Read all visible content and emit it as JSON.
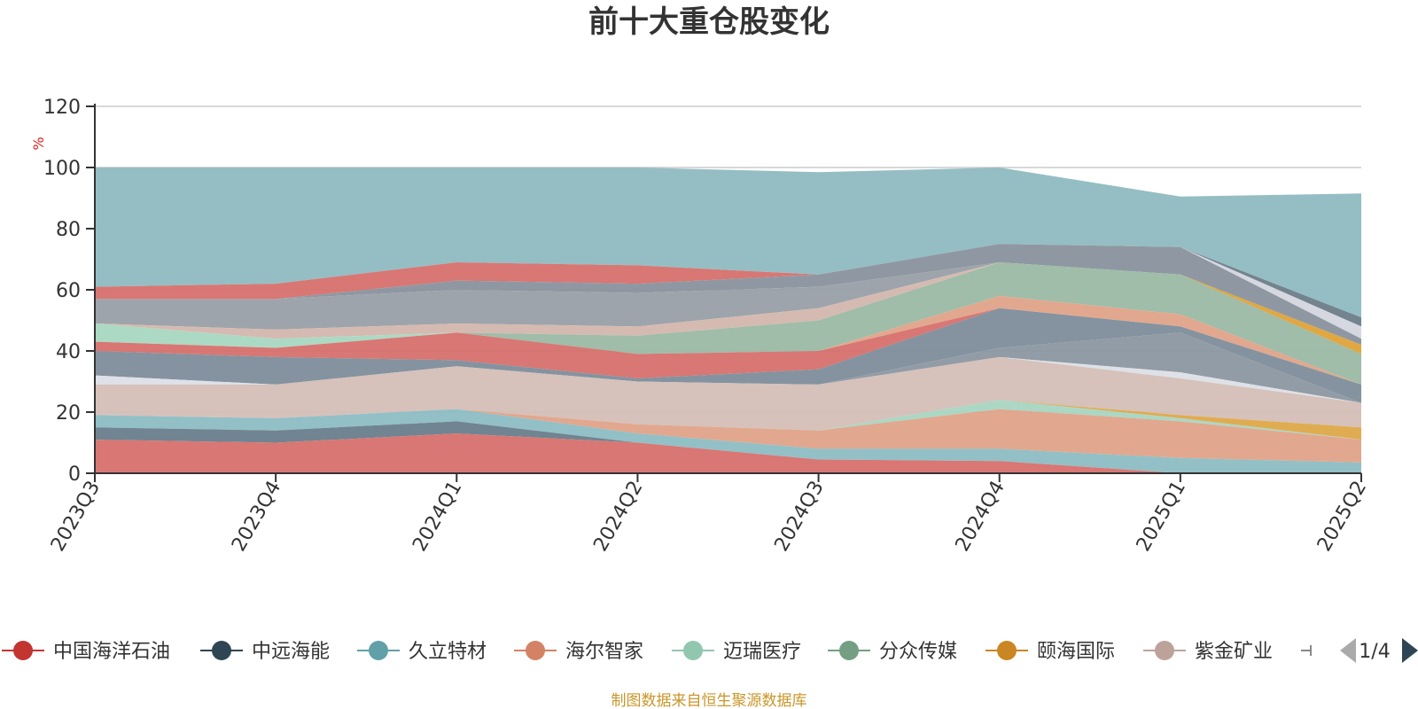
{
  "chart_data": {
    "type": "area",
    "title": "前十大重仓股变化",
    "ylabel": "%",
    "ylim": [
      0,
      120
    ],
    "yticks": [
      "0",
      "20",
      "40",
      "60",
      "80",
      "100",
      "120"
    ],
    "grid": true,
    "categories": [
      "2023Q3",
      "2023Q4",
      "2024Q1",
      "2024Q2",
      "2024Q3",
      "2024Q4",
      "2025Q1",
      "2025Q2"
    ],
    "bands": [
      {
        "color": "#91bbc2",
        "lower": [
          61,
          62,
          69,
          68,
          65,
          75,
          74,
          51
        ],
        "upper": [
          100,
          100,
          100,
          100,
          98.5,
          100,
          90.5,
          91.5
        ]
      },
      {
        "color": "#6e7f8a",
        "lower": [
          61,
          62,
          69,
          68,
          65,
          75,
          74,
          48
        ],
        "upper": [
          61,
          62,
          69,
          68,
          65,
          75,
          74,
          51
        ]
      },
      {
        "color": "#d3d6df",
        "lower": [
          61,
          62,
          69,
          68,
          65,
          75,
          74,
          44
        ],
        "upper": [
          61,
          62,
          69,
          68,
          65,
          75,
          74,
          48
        ]
      },
      {
        "color": "#d6716e",
        "lower": [
          57,
          57,
          63,
          62,
          65,
          75,
          74,
          44
        ],
        "upper": [
          61,
          62,
          69,
          68,
          65,
          75,
          74,
          44
        ]
      },
      {
        "color": "#8a949e",
        "lower": [
          57,
          57,
          60,
          59,
          61,
          69,
          65,
          42
        ],
        "upper": [
          57,
          57,
          63,
          62,
          65,
          75,
          74,
          44
        ]
      },
      {
        "color": "#9aa0a8",
        "lower": [
          49,
          47,
          49,
          48,
          54,
          69,
          65,
          42
        ],
        "upper": [
          57,
          57,
          60,
          59,
          61,
          69,
          65,
          42
        ]
      },
      {
        "color": "#d3b7ae",
        "lower": [
          49,
          44,
          46,
          45,
          50,
          69,
          65,
          42
        ],
        "upper": [
          49,
          47,
          49,
          48,
          54,
          69,
          65,
          42
        ]
      },
      {
        "color": "#e0a33a",
        "lower": [
          49,
          44,
          46,
          45,
          50,
          69,
          65,
          39
        ],
        "upper": [
          49,
          44,
          46,
          45,
          50,
          69,
          65,
          42
        ]
      },
      {
        "color": "#a5c5b5",
        "lower": [
          49,
          44,
          46,
          45,
          50,
          69,
          65,
          39
        ],
        "upper": [
          49,
          44,
          46,
          45,
          50,
          69,
          65,
          39
        ]
      },
      {
        "color": "#9bbaa6",
        "lower": [
          49,
          44,
          46,
          39,
          40,
          58,
          52,
          29
        ],
        "upper": [
          49,
          44,
          46,
          45,
          50,
          69,
          65,
          39
        ]
      },
      {
        "color": "#a9d7c2",
        "lower": [
          43,
          41,
          46,
          39,
          40,
          58,
          52,
          29
        ],
        "upper": [
          49,
          44,
          46,
          39,
          40,
          58,
          52,
          29
        ]
      },
      {
        "color": "#e0a48a",
        "lower": [
          43,
          41,
          46,
          39,
          40,
          54,
          48,
          29
        ],
        "upper": [
          43,
          41,
          46,
          39,
          40,
          58,
          52,
          29
        ]
      },
      {
        "color": "#d6716e",
        "lower": [
          40,
          38,
          37,
          31,
          34,
          54,
          48,
          29
        ],
        "upper": [
          43,
          41,
          46,
          39,
          40,
          54,
          48,
          29
        ]
      },
      {
        "color": "#8ab4bd",
        "lower": [
          40,
          38,
          37,
          31,
          34,
          54,
          48,
          29
        ],
        "upper": [
          40,
          38,
          37,
          31,
          34,
          54,
          48,
          29
        ]
      },
      {
        "color": "#7f8f9b",
        "lower": [
          32,
          29,
          35,
          30,
          29,
          41,
          46,
          23
        ],
        "upper": [
          40,
          38,
          37,
          31,
          34,
          54,
          48,
          29
        ]
      },
      {
        "color": "#8e98a2",
        "lower": [
          32,
          29,
          35,
          30,
          29,
          38,
          33,
          23
        ],
        "upper": [
          32,
          29,
          35,
          30,
          29,
          41,
          46,
          23
        ]
      },
      {
        "color": "#dde0e6",
        "lower": [
          29,
          29,
          35,
          30,
          29,
          38,
          31,
          23
        ],
        "upper": [
          32,
          29,
          35,
          30,
          29,
          38,
          33,
          23
        ]
      },
      {
        "color": "#d4beb8",
        "lower": [
          19,
          18,
          21,
          16,
          14,
          24,
          19,
          15
        ],
        "upper": [
          29,
          29,
          35,
          30,
          29,
          38,
          31,
          23
        ]
      },
      {
        "color": "#dfa94a",
        "lower": [
          19,
          18,
          21,
          16,
          14,
          24,
          18,
          11
        ],
        "upper": [
          19,
          18,
          21,
          16,
          14,
          24,
          19,
          15
        ]
      },
      {
        "color": "#a8d5c2",
        "lower": [
          19,
          18,
          21,
          16,
          14,
          21,
          17,
          11
        ],
        "upper": [
          19,
          18,
          21,
          16,
          14,
          24,
          18,
          11
        ]
      },
      {
        "color": "#e0a48a",
        "lower": [
          19,
          18,
          21,
          13,
          8,
          8,
          5,
          3.5
        ],
        "upper": [
          19,
          18,
          21,
          16,
          14,
          21,
          17,
          11
        ]
      },
      {
        "color": "#8ebdc4",
        "lower": [
          15,
          14,
          17,
          10,
          4.5,
          4,
          0,
          0
        ],
        "upper": [
          19,
          18,
          21,
          13,
          8,
          8,
          5,
          3.5
        ]
      },
      {
        "color": "#6b7f8c",
        "lower": [
          11,
          10,
          13,
          10,
          4.5,
          4,
          0,
          0
        ],
        "upper": [
          15,
          14,
          17,
          10,
          4.5,
          4,
          0,
          0
        ]
      },
      {
        "color": "#d6716e",
        "lower": [
          0,
          0,
          0,
          0,
          0,
          0,
          0,
          0
        ],
        "upper": [
          11,
          10,
          13,
          10,
          4.5,
          4,
          0,
          0
        ]
      }
    ]
  },
  "legend": {
    "items": [
      {
        "label": "中国海洋石油",
        "color": "#c23531"
      },
      {
        "label": "中远海能",
        "color": "#2f4554"
      },
      {
        "label": "久立特材",
        "color": "#61a0a8"
      },
      {
        "label": "海尔智家",
        "color": "#d48265"
      },
      {
        "label": "迈瑞医疗",
        "color": "#91c7ae"
      },
      {
        "label": "分众传媒",
        "color": "#749f83"
      },
      {
        "label": "颐海国际",
        "color": "#ca8622"
      },
      {
        "label": "紫金矿业",
        "color": "#bda29a"
      }
    ],
    "page": "1/4"
  },
  "source": "制图数据来自恒生聚源数据库"
}
